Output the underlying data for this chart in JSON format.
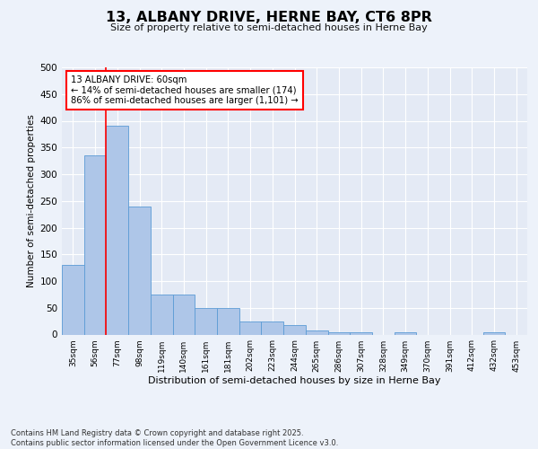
{
  "title1": "13, ALBANY DRIVE, HERNE BAY, CT6 8PR",
  "title2": "Size of property relative to semi-detached houses in Herne Bay",
  "xlabel": "Distribution of semi-detached houses by size in Herne Bay",
  "ylabel": "Number of semi-detached properties",
  "categories": [
    "35sqm",
    "56sqm",
    "77sqm",
    "98sqm",
    "119sqm",
    "140sqm",
    "161sqm",
    "181sqm",
    "202sqm",
    "223sqm",
    "244sqm",
    "265sqm",
    "286sqm",
    "307sqm",
    "328sqm",
    "349sqm",
    "370sqm",
    "391sqm",
    "412sqm",
    "432sqm",
    "453sqm"
  ],
  "values": [
    130,
    335,
    390,
    240,
    75,
    75,
    50,
    50,
    25,
    25,
    18,
    8,
    5,
    5,
    0,
    4,
    0,
    0,
    0,
    4,
    0
  ],
  "bar_color": "#aec6e8",
  "bar_edge_color": "#5b9bd5",
  "red_line_x": 1.5,
  "annotation_text": "13 ALBANY DRIVE: 60sqm\n← 14% of semi-detached houses are smaller (174)\n86% of semi-detached houses are larger (1,101) →",
  "annotation_box_color": "white",
  "annotation_box_edge": "red",
  "ylim": [
    0,
    500
  ],
  "yticks": [
    0,
    50,
    100,
    150,
    200,
    250,
    300,
    350,
    400,
    450,
    500
  ],
  "footer": "Contains HM Land Registry data © Crown copyright and database right 2025.\nContains public sector information licensed under the Open Government Licence v3.0.",
  "bg_color": "#edf2fa",
  "plot_bg_color": "#e4eaf5"
}
